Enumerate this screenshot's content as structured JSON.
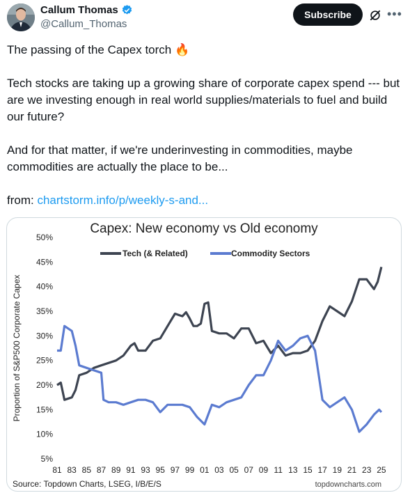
{
  "author": {
    "name": "Callum Thomas",
    "handle": "@Callum_Thomas"
  },
  "actions": {
    "subscribe_label": "Subscribe"
  },
  "tweet": {
    "line1": "The passing of the Capex torch 🔥",
    "para2": "Tech stocks are taking up a growing share of corporate capex spend --- but are we investing enough in real world supplies/materials to fuel and build our future?",
    "para3": "And for that matter, if we're underinvesting in commodities, maybe commodities are actually the place to be...",
    "from_label": "from: ",
    "link_text": "chartstorm.info/p/weekly-s-and..."
  },
  "colors": {
    "tech": "#3d4451",
    "commodity": "#5b7bd0",
    "accent": "#1d9bf0"
  },
  "chart_data": {
    "type": "line",
    "title": "Capex: New economy vs Old economy",
    "ylabel": "Proportion of S&P500 Corporate Capex",
    "xlabel": "",
    "ylim": [
      5,
      50
    ],
    "xlim": [
      1981,
      2025.2
    ],
    "yticks": [
      "50%",
      "45%",
      "40%",
      "35%",
      "30%",
      "25%",
      "20%",
      "15%",
      "10%",
      "5%"
    ],
    "xticks": [
      "81",
      "83",
      "85",
      "87",
      "89",
      "91",
      "93",
      "95",
      "97",
      "99",
      "01",
      "03",
      "05",
      "07",
      "09",
      "11",
      "13",
      "15",
      "17",
      "19",
      "21",
      "23",
      "25"
    ],
    "legend_position": "top",
    "source": "Source: Topdown Charts, LSEG, I/B/E/S",
    "watermark": "topdowncharts.com",
    "series": [
      {
        "name": "Tech (& Related)",
        "color": "#3d4451",
        "points": [
          [
            1981,
            20
          ],
          [
            1981.5,
            20.5
          ],
          [
            1982,
            17
          ],
          [
            1983,
            17.5
          ],
          [
            1983.5,
            19
          ],
          [
            1984,
            22
          ],
          [
            1985,
            22.5
          ],
          [
            1986,
            23.5
          ],
          [
            1987,
            24
          ],
          [
            1988,
            24.5
          ],
          [
            1989,
            25
          ],
          [
            1990,
            26
          ],
          [
            1991,
            28
          ],
          [
            1991.5,
            28.5
          ],
          [
            1992,
            27
          ],
          [
            1993,
            27
          ],
          [
            1994,
            29
          ],
          [
            1995,
            29.5
          ],
          [
            1996,
            32
          ],
          [
            1997,
            34.5
          ],
          [
            1998,
            34
          ],
          [
            1998.5,
            34.8
          ],
          [
            1999,
            33.5
          ],
          [
            1999.5,
            32
          ],
          [
            2000,
            32
          ],
          [
            2000.5,
            32.5
          ],
          [
            2001,
            36.5
          ],
          [
            2001.5,
            36.8
          ],
          [
            2002,
            31
          ],
          [
            2003,
            30.5
          ],
          [
            2004,
            30.5
          ],
          [
            2005,
            29.5
          ],
          [
            2006,
            31.5
          ],
          [
            2007,
            31.5
          ],
          [
            2008,
            28.5
          ],
          [
            2009,
            29
          ],
          [
            2010,
            26.5
          ],
          [
            2011,
            28
          ],
          [
            2012,
            26
          ],
          [
            2013,
            26.5
          ],
          [
            2014,
            26.5
          ],
          [
            2015,
            27
          ],
          [
            2016,
            29
          ],
          [
            2017,
            33
          ],
          [
            2018,
            36
          ],
          [
            2019,
            35
          ],
          [
            2020,
            34
          ],
          [
            2021,
            37
          ],
          [
            2022,
            41.5
          ],
          [
            2023,
            41.5
          ],
          [
            2024,
            39.5
          ],
          [
            2024.5,
            41
          ],
          [
            2025,
            44
          ]
        ]
      },
      {
        "name": "Commodity Sectors",
        "color": "#5b7bd0",
        "points": [
          [
            1981,
            27
          ],
          [
            1981.5,
            27
          ],
          [
            1982,
            32
          ],
          [
            1983,
            31
          ],
          [
            1983.5,
            28
          ],
          [
            1984,
            24
          ],
          [
            1985,
            23.5
          ],
          [
            1986,
            23
          ],
          [
            1987,
            22.5
          ],
          [
            1987.3,
            17
          ],
          [
            1988,
            16.5
          ],
          [
            1989,
            16.5
          ],
          [
            1990,
            16
          ],
          [
            1991,
            16.5
          ],
          [
            1992,
            17
          ],
          [
            1993,
            17
          ],
          [
            1994,
            16.5
          ],
          [
            1995,
            14.5
          ],
          [
            1996,
            16
          ],
          [
            1997,
            16
          ],
          [
            1998,
            16
          ],
          [
            1999,
            15.5
          ],
          [
            2000,
            13.5
          ],
          [
            2001,
            12
          ],
          [
            2002,
            16
          ],
          [
            2003,
            15.5
          ],
          [
            2004,
            16.5
          ],
          [
            2005,
            17
          ],
          [
            2006,
            17.5
          ],
          [
            2007,
            20
          ],
          [
            2008,
            22
          ],
          [
            2009,
            22
          ],
          [
            2010,
            25
          ],
          [
            2011,
            29
          ],
          [
            2012,
            27
          ],
          [
            2013,
            28
          ],
          [
            2014,
            29.5
          ],
          [
            2015,
            30
          ],
          [
            2016,
            27
          ],
          [
            2017,
            17
          ],
          [
            2018,
            15.5
          ],
          [
            2019,
            16.5
          ],
          [
            2020,
            17.5
          ],
          [
            2021,
            15
          ],
          [
            2022,
            10.5
          ],
          [
            2023,
            12
          ],
          [
            2024,
            14
          ],
          [
            2024.7,
            15
          ],
          [
            2025,
            14.5
          ]
        ]
      }
    ]
  }
}
